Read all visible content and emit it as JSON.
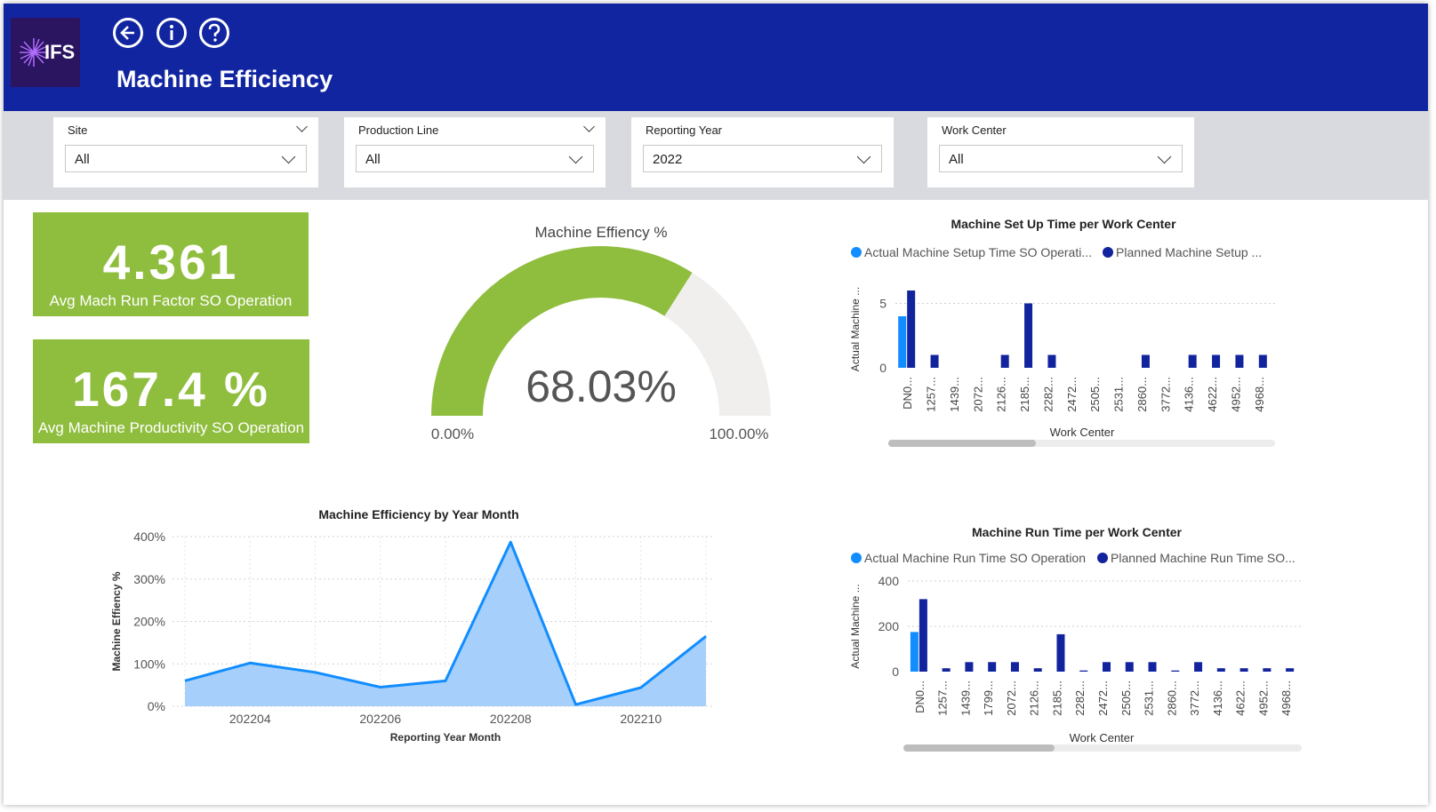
{
  "header": {
    "logo_text": "IFS",
    "title": "Machine Efficiency",
    "color": "#1125a0"
  },
  "filters": [
    {
      "label": "Site",
      "value": "All"
    },
    {
      "label": "Production Line",
      "value": "All"
    },
    {
      "label": "Reporting Year",
      "value": "2022"
    },
    {
      "label": "Work Center",
      "value": "All"
    }
  ],
  "kpis": [
    {
      "value": "4.361",
      "label": "Avg Mach Run Factor SO Operation"
    },
    {
      "value": "167.4 %",
      "label": "Avg Machine Productivity SO Operation"
    }
  ],
  "colors": {
    "accent_green": "#8fbd3e",
    "light_blue": "#118dff",
    "dark_blue": "#12239e",
    "area_fill": "#a6d0fb"
  },
  "chart_data": [
    {
      "type": "gauge",
      "title": "Machine Effiency %",
      "value": 68.03,
      "value_label": "68.03%",
      "min_label": "0.00%",
      "max_label": "100.00%"
    },
    {
      "type": "bar",
      "title": "Machine Set Up Time per Work Center",
      "xlabel": "Work Center",
      "ylabel": "Actual Machine ...",
      "legend_position": "top",
      "yticks": [
        "0",
        "5"
      ],
      "ylim": [
        0,
        6
      ],
      "categories": [
        "DN0...",
        "1257...",
        "1439...",
        "2072...",
        "2126...",
        "2185...",
        "2282...",
        "2472...",
        "2505...",
        "2531...",
        "2860...",
        "3772...",
        "4136...",
        "4622...",
        "4952...",
        "4968..."
      ],
      "series": [
        {
          "name": "Actual Machine Setup Time SO Operati...",
          "values": [
            4,
            0,
            0,
            0,
            0,
            0,
            0,
            0,
            0,
            0,
            0,
            0,
            0,
            0,
            0,
            0
          ]
        },
        {
          "name": "Planned Machine Setup ...",
          "values": [
            6,
            1,
            0,
            0,
            1,
            5,
            1,
            0,
            0,
            0,
            1,
            0,
            1,
            1,
            1,
            1
          ]
        }
      ]
    },
    {
      "type": "area",
      "title": "Machine Efficiency by Year Month",
      "xlabel": "Reporting Year Month",
      "ylabel": "Machine Effiency %",
      "yticks": [
        "0%",
        "100%",
        "200%",
        "300%",
        "400%"
      ],
      "ylim": [
        0,
        400
      ],
      "xticks": [
        "202204",
        "202206",
        "202208",
        "202210"
      ],
      "x": [
        "202203",
        "202204",
        "202205",
        "202206",
        "202207",
        "202208",
        "202209",
        "202210",
        "202211"
      ],
      "values": [
        60,
        102,
        80,
        45,
        60,
        387,
        4,
        44,
        165
      ]
    },
    {
      "type": "bar",
      "title": "Machine Run Time per Work Center",
      "xlabel": "Work Center",
      "ylabel": "Actual Machine ...",
      "legend_position": "top",
      "yticks": [
        "0",
        "200",
        "400"
      ],
      "ylim": [
        0,
        400
      ],
      "categories": [
        "DN0...",
        "1257...",
        "1439...",
        "1799...",
        "2072...",
        "2126...",
        "2185...",
        "2282...",
        "2472...",
        "2505...",
        "2531...",
        "2860...",
        "3772...",
        "4136...",
        "4622...",
        "4952...",
        "4968..."
      ],
      "series": [
        {
          "name": "Actual Machine Run Time SO Operation",
          "values": [
            175,
            0,
            0,
            0,
            0,
            0,
            0,
            0,
            0,
            0,
            0,
            0,
            0,
            0,
            0,
            0,
            0
          ]
        },
        {
          "name": "Planned Machine Run Time SO...",
          "values": [
            320,
            15,
            42,
            42,
            42,
            15,
            165,
            5,
            42,
            42,
            42,
            5,
            42,
            15,
            15,
            15,
            15
          ]
        }
      ]
    }
  ]
}
